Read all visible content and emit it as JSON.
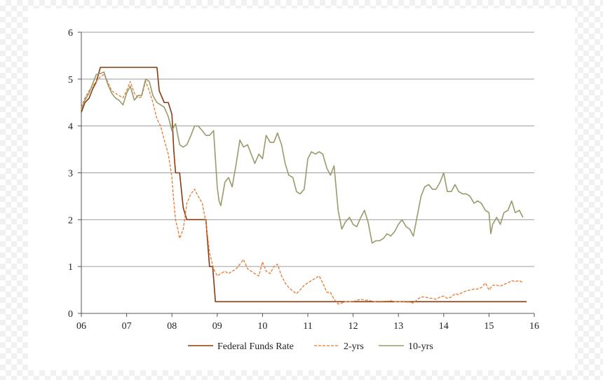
{
  "chart_data": {
    "type": "line",
    "title": "",
    "xlabel": "",
    "ylabel": "",
    "xlim": [
      2006.0,
      2016.0
    ],
    "ylim": [
      0,
      6
    ],
    "x_ticks": [
      2006,
      2007,
      2008,
      2009,
      2010,
      2011,
      2012,
      2013,
      2014,
      2015,
      2016
    ],
    "x_tick_labels": [
      "06",
      "07",
      "08",
      "09",
      "10",
      "11",
      "12",
      "13",
      "14",
      "15",
      "16"
    ],
    "y_ticks": [
      0,
      1,
      2,
      3,
      4,
      5,
      6
    ],
    "y_tick_labels": [
      "0",
      "1",
      "2",
      "3",
      "4",
      "5",
      "6"
    ],
    "grid": "horizontal",
    "legend_position": "bottom",
    "series": [
      {
        "name": "Federal Funds Rate",
        "style": "solid",
        "color": "#8B3A0F",
        "points": [
          [
            2006.0,
            4.29
          ],
          [
            2006.08,
            4.5
          ],
          [
            2006.17,
            4.59
          ],
          [
            2006.25,
            4.79
          ],
          [
            2006.33,
            4.94
          ],
          [
            2006.42,
            5.25
          ],
          [
            2006.5,
            5.25
          ],
          [
            2006.58,
            5.25
          ],
          [
            2006.67,
            5.25
          ],
          [
            2006.75,
            5.25
          ],
          [
            2006.83,
            5.25
          ],
          [
            2006.92,
            5.25
          ],
          [
            2007.0,
            5.25
          ],
          [
            2007.08,
            5.25
          ],
          [
            2007.17,
            5.25
          ],
          [
            2007.25,
            5.25
          ],
          [
            2007.33,
            5.25
          ],
          [
            2007.42,
            5.25
          ],
          [
            2007.5,
            5.25
          ],
          [
            2007.58,
            5.25
          ],
          [
            2007.67,
            5.25
          ],
          [
            2007.72,
            4.75
          ],
          [
            2007.83,
            4.5
          ],
          [
            2007.92,
            4.5
          ],
          [
            2008.0,
            4.25
          ],
          [
            2008.04,
            3.5
          ],
          [
            2008.08,
            3.0
          ],
          [
            2008.17,
            3.0
          ],
          [
            2008.25,
            2.25
          ],
          [
            2008.33,
            2.0
          ],
          [
            2008.42,
            2.0
          ],
          [
            2008.5,
            2.0
          ],
          [
            2008.58,
            2.0
          ],
          [
            2008.67,
            2.0
          ],
          [
            2008.75,
            2.0
          ],
          [
            2008.79,
            1.5
          ],
          [
            2008.83,
            1.0
          ],
          [
            2008.9,
            1.0
          ],
          [
            2008.96,
            0.25
          ],
          [
            2009.0,
            0.25
          ],
          [
            2010.0,
            0.25
          ],
          [
            2011.0,
            0.25
          ],
          [
            2012.0,
            0.25
          ],
          [
            2013.0,
            0.25
          ],
          [
            2014.0,
            0.25
          ],
          [
            2015.0,
            0.25
          ],
          [
            2015.5,
            0.25
          ],
          [
            2015.83,
            0.25
          ]
        ]
      },
      {
        "name": "2-yrs",
        "style": "dashed",
        "color": "#E87A2E",
        "points": [
          [
            2006.0,
            4.4
          ],
          [
            2006.08,
            4.6
          ],
          [
            2006.17,
            4.75
          ],
          [
            2006.25,
            4.85
          ],
          [
            2006.33,
            4.95
          ],
          [
            2006.42,
            5.05
          ],
          [
            2006.5,
            5.1
          ],
          [
            2006.58,
            4.95
          ],
          [
            2006.67,
            4.75
          ],
          [
            2006.75,
            4.7
          ],
          [
            2006.83,
            4.65
          ],
          [
            2006.92,
            4.6
          ],
          [
            2007.0,
            4.75
          ],
          [
            2007.08,
            4.95
          ],
          [
            2007.17,
            4.7
          ],
          [
            2007.25,
            4.6
          ],
          [
            2007.33,
            4.62
          ],
          [
            2007.42,
            4.95
          ],
          [
            2007.5,
            4.75
          ],
          [
            2007.58,
            4.5
          ],
          [
            2007.67,
            4.15
          ],
          [
            2007.75,
            4.0
          ],
          [
            2007.83,
            3.7
          ],
          [
            2007.92,
            3.4
          ],
          [
            2008.0,
            2.9
          ],
          [
            2008.04,
            2.4
          ],
          [
            2008.08,
            2.0
          ],
          [
            2008.13,
            1.8
          ],
          [
            2008.17,
            1.6
          ],
          [
            2008.25,
            1.8
          ],
          [
            2008.33,
            2.35
          ],
          [
            2008.42,
            2.55
          ],
          [
            2008.5,
            2.65
          ],
          [
            2008.58,
            2.5
          ],
          [
            2008.67,
            2.35
          ],
          [
            2008.75,
            1.95
          ],
          [
            2008.83,
            1.3
          ],
          [
            2008.92,
            0.95
          ],
          [
            2009.0,
            0.8
          ],
          [
            2009.08,
            0.85
          ],
          [
            2009.17,
            0.9
          ],
          [
            2009.25,
            0.85
          ],
          [
            2009.33,
            0.9
          ],
          [
            2009.42,
            0.95
          ],
          [
            2009.5,
            1.05
          ],
          [
            2009.58,
            1.15
          ],
          [
            2009.67,
            0.95
          ],
          [
            2009.75,
            0.9
          ],
          [
            2009.83,
            0.85
          ],
          [
            2009.92,
            0.8
          ],
          [
            2010.0,
            1.1
          ],
          [
            2010.08,
            0.9
          ],
          [
            2010.17,
            0.85
          ],
          [
            2010.25,
            1.0
          ],
          [
            2010.33,
            1.05
          ],
          [
            2010.42,
            0.8
          ],
          [
            2010.5,
            0.65
          ],
          [
            2010.58,
            0.55
          ],
          [
            2010.67,
            0.48
          ],
          [
            2010.75,
            0.42
          ],
          [
            2010.83,
            0.5
          ],
          [
            2010.92,
            0.6
          ],
          [
            2011.0,
            0.65
          ],
          [
            2011.08,
            0.7
          ],
          [
            2011.17,
            0.75
          ],
          [
            2011.25,
            0.8
          ],
          [
            2011.33,
            0.65
          ],
          [
            2011.42,
            0.45
          ],
          [
            2011.5,
            0.45
          ],
          [
            2011.58,
            0.3
          ],
          [
            2011.67,
            0.2
          ],
          [
            2011.75,
            0.22
          ],
          [
            2011.83,
            0.25
          ],
          [
            2011.92,
            0.25
          ],
          [
            2012.0,
            0.25
          ],
          [
            2012.08,
            0.28
          ],
          [
            2012.17,
            0.3
          ],
          [
            2012.25,
            0.28
          ],
          [
            2012.33,
            0.28
          ],
          [
            2012.42,
            0.26
          ],
          [
            2012.5,
            0.25
          ],
          [
            2012.58,
            0.24
          ],
          [
            2012.67,
            0.26
          ],
          [
            2012.75,
            0.26
          ],
          [
            2012.83,
            0.27
          ],
          [
            2012.92,
            0.25
          ],
          [
            2013.0,
            0.25
          ],
          [
            2013.08,
            0.25
          ],
          [
            2013.17,
            0.24
          ],
          [
            2013.25,
            0.24
          ],
          [
            2013.33,
            0.22
          ],
          [
            2013.42,
            0.3
          ],
          [
            2013.5,
            0.35
          ],
          [
            2013.58,
            0.35
          ],
          [
            2013.67,
            0.33
          ],
          [
            2013.75,
            0.32
          ],
          [
            2013.83,
            0.3
          ],
          [
            2013.92,
            0.35
          ],
          [
            2014.0,
            0.37
          ],
          [
            2014.08,
            0.32
          ],
          [
            2014.17,
            0.35
          ],
          [
            2014.25,
            0.42
          ],
          [
            2014.33,
            0.4
          ],
          [
            2014.42,
            0.45
          ],
          [
            2014.5,
            0.48
          ],
          [
            2014.58,
            0.5
          ],
          [
            2014.67,
            0.52
          ],
          [
            2014.75,
            0.52
          ],
          [
            2014.83,
            0.55
          ],
          [
            2014.92,
            0.65
          ],
          [
            2015.0,
            0.5
          ],
          [
            2015.08,
            0.6
          ],
          [
            2015.17,
            0.6
          ],
          [
            2015.25,
            0.58
          ],
          [
            2015.33,
            0.62
          ],
          [
            2015.42,
            0.65
          ],
          [
            2015.5,
            0.7
          ],
          [
            2015.58,
            0.68
          ],
          [
            2015.67,
            0.7
          ],
          [
            2015.75,
            0.65
          ]
        ]
      },
      {
        "name": "10-yrs",
        "style": "solid",
        "color": "#9A9A6A",
        "points": [
          [
            2006.0,
            4.35
          ],
          [
            2006.08,
            4.55
          ],
          [
            2006.17,
            4.7
          ],
          [
            2006.25,
            4.9
          ],
          [
            2006.33,
            5.1
          ],
          [
            2006.42,
            5.12
          ],
          [
            2006.5,
            5.15
          ],
          [
            2006.58,
            4.9
          ],
          [
            2006.67,
            4.7
          ],
          [
            2006.75,
            4.6
          ],
          [
            2006.83,
            4.55
          ],
          [
            2006.92,
            4.45
          ],
          [
            2007.0,
            4.7
          ],
          [
            2007.08,
            4.85
          ],
          [
            2007.17,
            4.55
          ],
          [
            2007.25,
            4.65
          ],
          [
            2007.33,
            4.65
          ],
          [
            2007.42,
            5.0
          ],
          [
            2007.5,
            4.95
          ],
          [
            2007.58,
            4.65
          ],
          [
            2007.67,
            4.5
          ],
          [
            2007.75,
            4.45
          ],
          [
            2007.83,
            4.4
          ],
          [
            2007.92,
            4.2
          ],
          [
            2008.0,
            3.9
          ],
          [
            2008.08,
            4.05
          ],
          [
            2008.17,
            3.6
          ],
          [
            2008.25,
            3.55
          ],
          [
            2008.33,
            3.6
          ],
          [
            2008.42,
            3.8
          ],
          [
            2008.5,
            4.0
          ],
          [
            2008.58,
            4.0
          ],
          [
            2008.67,
            3.9
          ],
          [
            2008.75,
            3.8
          ],
          [
            2008.83,
            3.8
          ],
          [
            2008.92,
            3.9
          ],
          [
            2009.0,
            2.7
          ],
          [
            2009.04,
            2.4
          ],
          [
            2009.08,
            2.3
          ],
          [
            2009.17,
            2.8
          ],
          [
            2009.25,
            2.9
          ],
          [
            2009.33,
            2.7
          ],
          [
            2009.42,
            3.2
          ],
          [
            2009.5,
            3.7
          ],
          [
            2009.58,
            3.55
          ],
          [
            2009.67,
            3.6
          ],
          [
            2009.75,
            3.4
          ],
          [
            2009.83,
            3.2
          ],
          [
            2009.92,
            3.4
          ],
          [
            2010.0,
            3.3
          ],
          [
            2010.08,
            3.8
          ],
          [
            2010.17,
            3.65
          ],
          [
            2010.25,
            3.65
          ],
          [
            2010.33,
            3.85
          ],
          [
            2010.42,
            3.6
          ],
          [
            2010.5,
            3.2
          ],
          [
            2010.58,
            2.95
          ],
          [
            2010.67,
            2.9
          ],
          [
            2010.75,
            2.6
          ],
          [
            2010.83,
            2.55
          ],
          [
            2010.92,
            2.65
          ],
          [
            2011.0,
            3.3
          ],
          [
            2011.08,
            3.45
          ],
          [
            2011.17,
            3.4
          ],
          [
            2011.25,
            3.45
          ],
          [
            2011.33,
            3.4
          ],
          [
            2011.42,
            3.1
          ],
          [
            2011.5,
            2.95
          ],
          [
            2011.58,
            3.15
          ],
          [
            2011.67,
            2.2
          ],
          [
            2011.75,
            1.8
          ],
          [
            2011.83,
            1.95
          ],
          [
            2011.92,
            2.05
          ],
          [
            2012.0,
            1.9
          ],
          [
            2012.08,
            1.85
          ],
          [
            2012.17,
            2.05
          ],
          [
            2012.25,
            2.2
          ],
          [
            2012.33,
            1.95
          ],
          [
            2012.42,
            1.5
          ],
          [
            2012.5,
            1.55
          ],
          [
            2012.58,
            1.55
          ],
          [
            2012.67,
            1.6
          ],
          [
            2012.75,
            1.7
          ],
          [
            2012.83,
            1.65
          ],
          [
            2012.92,
            1.75
          ],
          [
            2013.0,
            1.9
          ],
          [
            2013.08,
            2.0
          ],
          [
            2013.17,
            1.85
          ],
          [
            2013.25,
            1.8
          ],
          [
            2013.33,
            1.65
          ],
          [
            2013.42,
            2.1
          ],
          [
            2013.5,
            2.5
          ],
          [
            2013.58,
            2.7
          ],
          [
            2013.67,
            2.75
          ],
          [
            2013.75,
            2.65
          ],
          [
            2013.83,
            2.65
          ],
          [
            2013.92,
            2.8
          ],
          [
            2014.0,
            3.0
          ],
          [
            2014.08,
            2.6
          ],
          [
            2014.17,
            2.6
          ],
          [
            2014.25,
            2.75
          ],
          [
            2014.33,
            2.6
          ],
          [
            2014.42,
            2.55
          ],
          [
            2014.5,
            2.55
          ],
          [
            2014.58,
            2.5
          ],
          [
            2014.67,
            2.35
          ],
          [
            2014.75,
            2.4
          ],
          [
            2014.83,
            2.35
          ],
          [
            2014.92,
            2.2
          ],
          [
            2015.0,
            2.15
          ],
          [
            2015.04,
            1.7
          ],
          [
            2015.08,
            1.9
          ],
          [
            2015.17,
            2.05
          ],
          [
            2015.25,
            1.9
          ],
          [
            2015.33,
            2.15
          ],
          [
            2015.42,
            2.2
          ],
          [
            2015.5,
            2.4
          ],
          [
            2015.58,
            2.15
          ],
          [
            2015.67,
            2.2
          ],
          [
            2015.75,
            2.05
          ]
        ]
      }
    ]
  }
}
